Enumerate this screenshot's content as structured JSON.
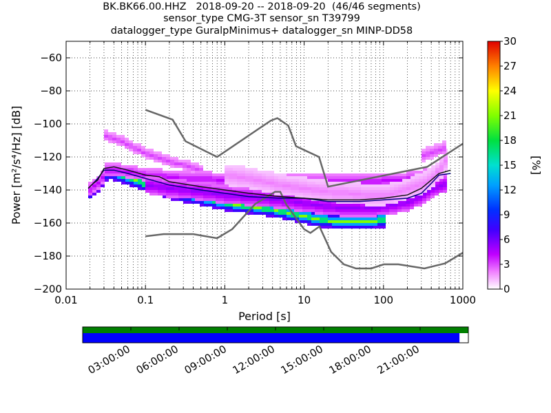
{
  "title": {
    "line1": "BK.BK66.00.HHZ   2018-09-20 -- 2018-09-20  (46/46 segments)",
    "line2": "sensor_type CMG-3T sensor_sn T39799",
    "line3": "datalogger_type GuralpMinimus+ datalogger_sn MINP-DD58"
  },
  "chart_data": {
    "type": "heatmap",
    "title": "BK.BK66.00.HHZ   2018-09-20 -- 2018-09-20  (46/46 segments)",
    "xlabel": "Period [s]",
    "ylabel": "Power [m²/s⁴/Hz] [dB]",
    "x_scale": "log",
    "xlim": [
      0.01,
      1000
    ],
    "ylim": [
      -200,
      -50
    ],
    "x_ticks": [
      0.01,
      0.1,
      1,
      10,
      100,
      1000
    ],
    "x_tick_labels": [
      "0.01",
      "0.1",
      "1",
      "10",
      "100",
      "1000"
    ],
    "y_ticks": [
      -200,
      -180,
      -160,
      -140,
      -120,
      -100,
      -80,
      -60
    ],
    "y_tick_labels": [
      "−200",
      "−180",
      "−160",
      "−140",
      "−120",
      "−100",
      "−80",
      "−60"
    ],
    "grid": true,
    "colorbar": {
      "label": "[%]",
      "range": [
        0,
        30
      ],
      "ticks": [
        0,
        3,
        6,
        9,
        12,
        15,
        18,
        21,
        24,
        27,
        30
      ],
      "tick_labels": [
        "0",
        "3",
        "6",
        "9",
        "12",
        "15",
        "18",
        "21",
        "24",
        "27",
        "30"
      ]
    },
    "noise_models": {
      "high": [
        [
          0.1,
          -91.5
        ],
        [
          0.22,
          -97.4
        ],
        [
          0.32,
          -110.5
        ],
        [
          0.8,
          -120
        ],
        [
          3.8,
          -98
        ],
        [
          4.6,
          -96.5
        ],
        [
          6.3,
          -101
        ],
        [
          7.9,
          -113.5
        ],
        [
          15.4,
          -120
        ],
        [
          20,
          -138
        ],
        [
          354.8,
          -126
        ],
        [
          1000,
          -112
        ]
      ],
      "low": [
        [
          0.1,
          -168
        ],
        [
          0.17,
          -166.7
        ],
        [
          0.4,
          -166.7
        ],
        [
          0.8,
          -169.2
        ],
        [
          1.24,
          -163.7
        ],
        [
          2.4,
          -148.6
        ],
        [
          4.3,
          -141.1
        ],
        [
          5,
          -141.1
        ],
        [
          6,
          -149
        ],
        [
          10,
          -163.8
        ],
        [
          12,
          -166
        ],
        [
          15.6,
          -162.1
        ],
        [
          21.9,
          -177.5
        ],
        [
          31.6,
          -185
        ],
        [
          45,
          -187.5
        ],
        [
          70,
          -187.5
        ],
        [
          101,
          -185
        ],
        [
          154,
          -185
        ],
        [
          328,
          -187.5
        ],
        [
          600,
          -184.4
        ],
        [
          1000,
          -178
        ]
      ]
    },
    "statistics_lines": {
      "mode": [
        [
          0.019,
          -139
        ],
        [
          0.022,
          -136
        ],
        [
          0.025,
          -133
        ],
        [
          0.03,
          -128
        ],
        [
          0.04,
          -128
        ],
        [
          0.06,
          -130
        ],
        [
          0.1,
          -133
        ],
        [
          0.2,
          -137
        ],
        [
          0.5,
          -140
        ],
        [
          1,
          -142
        ],
        [
          2,
          -144
        ],
        [
          5,
          -145
        ],
        [
          10,
          -145
        ],
        [
          20,
          -147
        ],
        [
          50,
          -147
        ],
        [
          100,
          -146
        ],
        [
          200,
          -145
        ],
        [
          300,
          -142
        ],
        [
          400,
          -136
        ],
        [
          500,
          -131
        ],
        [
          700,
          -130
        ]
      ],
      "mean": [
        [
          0.019,
          -139
        ],
        [
          0.022,
          -136
        ],
        [
          0.025,
          -134
        ],
        [
          0.03,
          -127
        ],
        [
          0.04,
          -126
        ],
        [
          0.06,
          -128
        ],
        [
          0.1,
          -131
        ],
        [
          0.15,
          -132
        ],
        [
          0.2,
          -135
        ],
        [
          0.5,
          -138
        ],
        [
          1,
          -140
        ],
        [
          2,
          -142
        ],
        [
          5,
          -144
        ],
        [
          10,
          -145
        ],
        [
          20,
          -146
        ],
        [
          50,
          -146
        ],
        [
          100,
          -145
        ],
        [
          200,
          -143
        ],
        [
          300,
          -139
        ],
        [
          400,
          -134
        ],
        [
          500,
          -130
        ],
        [
          600,
          -129
        ],
        [
          700,
          -128
        ]
      ]
    },
    "heat_bands": [
      {
        "periods": [
          0.019,
          0.022,
          0.026,
          0.03,
          0.035,
          0.045,
          0.06,
          0.08,
          0.1,
          0.15,
          0.2,
          0.3,
          0.5,
          0.8,
          1,
          2,
          4,
          6,
          10,
          15,
          25,
          40,
          60,
          100
        ],
        "powers": [
          -140,
          -137,
          -134,
          -129,
          -128,
          -130,
          -132,
          -134,
          -136,
          -138,
          -140,
          -142,
          -144,
          -146,
          -147,
          -149,
          -151,
          -153,
          -155,
          -157,
          -158,
          -158,
          -158,
          -157
        ],
        "spread": 2.5,
        "level": 12
      },
      {
        "periods": [
          0.019,
          0.022,
          0.026,
          0.03,
          0.035,
          0.045,
          0.06,
          0.08,
          0.1,
          0.15,
          0.2,
          0.3,
          0.5,
          0.8,
          1,
          2,
          4,
          6,
          10,
          15,
          25,
          40,
          60,
          100
        ],
        "powers": [
          -140,
          -137,
          -134,
          -129,
          -128,
          -130,
          -132,
          -134,
          -136,
          -138,
          -140,
          -142,
          -144,
          -146,
          -147,
          -149,
          -151,
          -153,
          -155,
          -157,
          -158,
          -158,
          -158,
          -157
        ],
        "spread": 1.0,
        "level": 21
      },
      {
        "periods": [
          0.019,
          0.022,
          0.026,
          0.03,
          0.04,
          0.06,
          0.1,
          0.2,
          0.3,
          0.5,
          1,
          2,
          5,
          10,
          20,
          40,
          70,
          100,
          150,
          200,
          300,
          400,
          500,
          600
        ],
        "powers": [
          -139,
          -136,
          -133,
          -127,
          -127,
          -128,
          -130,
          -131,
          -132,
          -132,
          -133,
          -133,
          -133,
          -134,
          -134,
          -134,
          -134,
          -133,
          -133,
          -132,
          -131,
          -128,
          -124,
          -121
        ],
        "spread": 2.0,
        "level": 4
      },
      {
        "periods": [
          0.03,
          0.035,
          0.045,
          0.06,
          0.08,
          0.1,
          0.15,
          0.2,
          0.3,
          0.5
        ],
        "powers": [
          -106,
          -107,
          -109,
          -112,
          -115,
          -117,
          -120,
          -122,
          -124,
          -127
        ],
        "spread": 1.5,
        "level": 3
      },
      {
        "periods": [
          0.1,
          0.2,
          0.5,
          1,
          2,
          5,
          10,
          20,
          50,
          100,
          200,
          300,
          400,
          500,
          600
        ],
        "powers": [
          -136,
          -138,
          -140,
          -142,
          -143,
          -145,
          -147,
          -149,
          -150,
          -149,
          -146,
          -142,
          -138,
          -136,
          -135
        ],
        "spread": 3.0,
        "level": 5
      },
      {
        "periods": [
          1,
          2,
          5,
          10,
          20,
          40,
          60,
          100,
          150,
          200,
          300,
          400,
          500,
          600
        ],
        "powers": [
          -130,
          -132,
          -136,
          -138,
          -140,
          -141,
          -142,
          -142,
          -140,
          -138,
          -135,
          -131,
          -126,
          -120
        ],
        "spread": 3.5,
        "level": 2
      },
      {
        "periods": [
          300,
          400,
          500,
          600
        ],
        "powers": [
          -118,
          -116,
          -114,
          -113
        ],
        "spread": 2.0,
        "level": 3
      }
    ],
    "availability": {
      "time_labels": [
        "03:00:00",
        "06:00:00",
        "09:00:00",
        "12:00:00",
        "15:00:00",
        "18:00:00",
        "21:00:00"
      ],
      "data_fraction": 0.977,
      "colors": {
        "data": "#0000ff",
        "gaps_ok": "#008000"
      }
    }
  },
  "colors": {
    "noise_model": "#666666",
    "mean_line": "#111111",
    "mode_line": "#000080",
    "grid": "#000000"
  }
}
